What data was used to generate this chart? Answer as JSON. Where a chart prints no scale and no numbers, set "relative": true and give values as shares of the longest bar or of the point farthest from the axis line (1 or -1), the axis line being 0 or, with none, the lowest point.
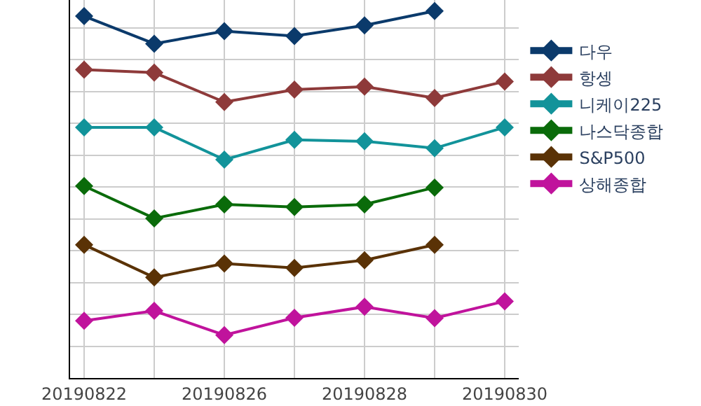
{
  "chart_data": {
    "type": "line",
    "relative": true,
    "marker": "diamond",
    "grid": true,
    "legend": "right",
    "categories": [
      "20190822",
      null,
      "20190826",
      null,
      "20190828",
      null,
      "20190830"
    ],
    "series": [
      {
        "name": "다우",
        "color": "#0b3a6b",
        "values": [
          0.986,
          0.911,
          0.945,
          0.932,
          0.961,
          1.0,
          null
        ]
      },
      {
        "name": "항셍",
        "color": "#8e3a3a",
        "values": [
          0.84,
          0.832,
          0.752,
          0.786,
          0.794,
          0.763,
          0.808
        ]
      },
      {
        "name": "니케이225",
        "color": "#12939a",
        "values": [
          0.683,
          0.683,
          0.595,
          0.649,
          0.645,
          0.626,
          0.683
        ]
      },
      {
        "name": "나스닥종합",
        "color": "#0a6b0a",
        "values": [
          0.523,
          0.435,
          0.473,
          0.466,
          0.473,
          0.519,
          null
        ]
      },
      {
        "name": "S&P500",
        "color": "#5a3206",
        "values": [
          0.363,
          0.274,
          0.312,
          0.3,
          0.321,
          0.363,
          null
        ]
      },
      {
        "name": "상해종합",
        "color": "#c0139c",
        "values": [
          0.156,
          0.183,
          0.117,
          0.164,
          0.194,
          0.163,
          0.209
        ]
      }
    ]
  }
}
